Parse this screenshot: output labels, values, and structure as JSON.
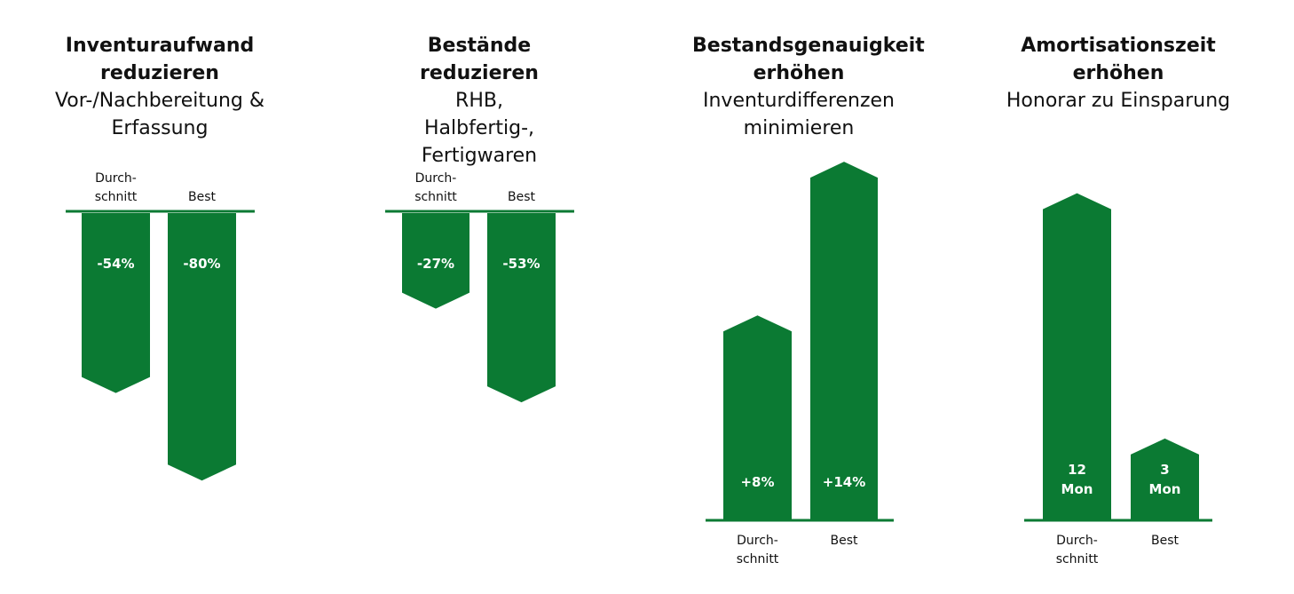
{
  "colors": {
    "bar": "#0b7a33",
    "baseline": "#0b7a33",
    "label_on_bar": "#ffffff",
    "axis_label": "#111111"
  },
  "chart_data": [
    {
      "type": "bar",
      "title": "Inventuraufwand reduzieren",
      "subtitle": "Vor-/Nachbereitung & Erfassung",
      "categories": [
        "Durch-\nschnitt",
        "Best"
      ],
      "values": [
        -54,
        -80
      ],
      "value_labels": [
        "-54%",
        "-80%"
      ],
      "direction": "down",
      "category_label_position": "top"
    },
    {
      "type": "bar",
      "title": "Bestände reduzieren",
      "subtitle": "RHB, Halbfertig-, Fertigwaren",
      "categories": [
        "Durch-\nschnitt",
        "Best"
      ],
      "values": [
        -27,
        -53
      ],
      "value_labels": [
        "-27%",
        "-53%"
      ],
      "direction": "down",
      "category_label_position": "top"
    },
    {
      "type": "bar",
      "title": "Bestandsgenauigkeit erhöhen",
      "subtitle": "Inventurdifferenzen minimieren",
      "categories": [
        "Durch-\nschnitt",
        "Best"
      ],
      "values": [
        8,
        14
      ],
      "value_labels": [
        "+8%",
        "+14%"
      ],
      "direction": "up",
      "category_label_position": "bottom"
    },
    {
      "type": "bar",
      "title": "Amortisationszeit erhöhen",
      "subtitle": "Honorar zu Einsparung",
      "categories": [
        "Durch-\nschnitt",
        "Best"
      ],
      "values": [
        12,
        3
      ],
      "value_labels": [
        "12\nMon",
        "3\nMon"
      ],
      "direction": "up",
      "category_label_position": "bottom"
    }
  ]
}
